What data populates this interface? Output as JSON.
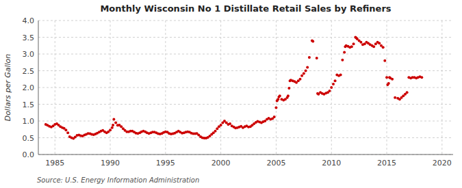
{
  "chart_data": {
    "type": "scatter",
    "title": "Monthly Wisconsin No 1 Distillate Retail Sales by Refiners",
    "ylabel": "Dollars per Gallon",
    "annotations": [
      "Source: U.S. Energy Information Administration"
    ],
    "color": "#cc0000",
    "grid": true,
    "xlim": [
      1983.5,
      2021
    ],
    "ylim": [
      0.0,
      4.0
    ],
    "xticks": [
      1985,
      1990,
      1995,
      2000,
      2005,
      2010,
      2015,
      2020
    ],
    "yticks": [
      {
        "value": 0.0,
        "label": "0.0"
      },
      0.5,
      {
        "value": 1.0,
        "label": "1.0"
      },
      1.5,
      {
        "value": 2.0,
        "label": "2.0"
      },
      2.5,
      {
        "value": 3.0,
        "label": "3.0"
      },
      3.5,
      {
        "value": 4.0,
        "label": "4.0"
      }
    ],
    "x": [
      1984.17,
      1984.33,
      1984.5,
      1984.67,
      1984.83,
      1985.0,
      1985.17,
      1985.33,
      1985.5,
      1985.67,
      1985.83,
      1986.0,
      1986.17,
      1986.33,
      1986.5,
      1986.67,
      1986.83,
      1987.0,
      1987.17,
      1987.33,
      1987.5,
      1987.67,
      1987.83,
      1988.0,
      1988.17,
      1988.33,
      1988.5,
      1988.67,
      1988.83,
      1989.0,
      1989.17,
      1989.33,
      1989.5,
      1989.67,
      1989.83,
      1990.0,
      1990.17,
      1990.25,
      1990.33,
      1990.5,
      1990.67,
      1990.83,
      1991.0,
      1991.17,
      1991.33,
      1991.5,
      1991.67,
      1991.83,
      1992.0,
      1992.17,
      1992.33,
      1992.5,
      1992.67,
      1992.83,
      1993.0,
      1993.17,
      1993.33,
      1993.5,
      1993.67,
      1993.83,
      1994.0,
      1994.17,
      1994.33,
      1994.5,
      1994.67,
      1994.83,
      1995.0,
      1995.17,
      1995.33,
      1995.5,
      1995.67,
      1995.83,
      1996.0,
      1996.17,
      1996.33,
      1996.5,
      1996.67,
      1996.83,
      1997.0,
      1997.17,
      1997.33,
      1997.5,
      1997.67,
      1997.83,
      1998.0,
      1998.17,
      1998.33,
      1998.5,
      1998.67,
      1998.83,
      1999.0,
      1999.17,
      1999.33,
      1999.5,
      1999.67,
      1999.83,
      2000.0,
      2000.17,
      2000.33,
      2000.5,
      2000.67,
      2000.83,
      2001.0,
      2001.17,
      2001.33,
      2001.5,
      2001.67,
      2001.83,
      2002.0,
      2002.17,
      2002.33,
      2002.5,
      2002.67,
      2002.83,
      2003.0,
      2003.17,
      2003.33,
      2003.5,
      2003.67,
      2003.83,
      2004.0,
      2004.17,
      2004.33,
      2004.5,
      2004.67,
      2004.83,
      2005.0,
      2005.08,
      2005.17,
      2005.25,
      2005.33,
      2005.5,
      2005.67,
      2005.83,
      2006.0,
      2006.08,
      2006.17,
      2006.25,
      2006.33,
      2006.5,
      2006.67,
      2006.83,
      2007.0,
      2007.17,
      2007.33,
      2007.5,
      2007.67,
      2007.83,
      2008.0,
      2008.25,
      2008.33,
      2008.67,
      2008.75,
      2008.83,
      2009.0,
      2009.17,
      2009.33,
      2009.5,
      2009.67,
      2009.83,
      2010.0,
      2010.17,
      2010.33,
      2010.5,
      2010.67,
      2010.83,
      2011.0,
      2011.17,
      2011.25,
      2011.33,
      2011.5,
      2011.67,
      2011.83,
      2012.0,
      2012.17,
      2012.25,
      2012.33,
      2012.5,
      2012.67,
      2012.83,
      2013.0,
      2013.17,
      2013.33,
      2013.5,
      2013.67,
      2013.83,
      2014.0,
      2014.17,
      2014.33,
      2014.5,
      2014.67,
      2014.83,
      2015.0,
      2015.08,
      2015.17,
      2015.25,
      2015.33,
      2015.5,
      2015.75,
      2016.0,
      2016.17,
      2016.33,
      2016.5,
      2016.67,
      2016.83,
      2017.0,
      2017.17,
      2017.33,
      2017.5,
      2017.67,
      2017.83,
      2018.0,
      2018.17
    ],
    "values": [
      0.9,
      0.87,
      0.84,
      0.82,
      0.85,
      0.9,
      0.92,
      0.88,
      0.83,
      0.8,
      0.78,
      0.73,
      0.65,
      0.53,
      0.5,
      0.48,
      0.52,
      0.57,
      0.58,
      0.56,
      0.55,
      0.58,
      0.6,
      0.63,
      0.62,
      0.6,
      0.59,
      0.61,
      0.64,
      0.67,
      0.7,
      0.72,
      0.68,
      0.65,
      0.68,
      0.73,
      0.8,
      0.88,
      1.05,
      0.95,
      0.87,
      0.88,
      0.83,
      0.77,
      0.72,
      0.68,
      0.68,
      0.7,
      0.7,
      0.67,
      0.64,
      0.63,
      0.65,
      0.68,
      0.7,
      0.68,
      0.65,
      0.63,
      0.65,
      0.67,
      0.67,
      0.65,
      0.62,
      0.61,
      0.63,
      0.66,
      0.68,
      0.67,
      0.63,
      0.61,
      0.62,
      0.64,
      0.67,
      0.7,
      0.67,
      0.64,
      0.65,
      0.67,
      0.68,
      0.67,
      0.64,
      0.62,
      0.62,
      0.63,
      0.58,
      0.53,
      0.5,
      0.49,
      0.49,
      0.51,
      0.55,
      0.6,
      0.65,
      0.7,
      0.77,
      0.83,
      0.88,
      0.95,
      1.0,
      0.95,
      0.9,
      0.92,
      0.85,
      0.82,
      0.79,
      0.8,
      0.82,
      0.84,
      0.8,
      0.83,
      0.85,
      0.82,
      0.83,
      0.87,
      0.92,
      0.96,
      0.99,
      0.97,
      0.95,
      0.98,
      1.0,
      1.05,
      1.08,
      1.05,
      1.07,
      1.12,
      1.4,
      1.6,
      1.65,
      1.72,
      1.75,
      1.65,
      1.62,
      1.65,
      1.7,
      1.75,
      1.98,
      2.2,
      2.22,
      2.2,
      2.18,
      2.15,
      2.2,
      2.25,
      2.35,
      2.42,
      2.5,
      2.6,
      2.9,
      3.4,
      3.38,
      2.88,
      1.82,
      1.8,
      1.85,
      1.82,
      1.8,
      1.83,
      1.85,
      1.9,
      2.0,
      2.1,
      2.2,
      2.38,
      2.35,
      2.38,
      2.82,
      3.05,
      3.22,
      3.25,
      3.23,
      3.2,
      3.22,
      3.3,
      3.5,
      3.48,
      3.45,
      3.4,
      3.35,
      3.28,
      3.3,
      3.35,
      3.32,
      3.28,
      3.25,
      3.22,
      3.3,
      3.35,
      3.32,
      3.25,
      3.2,
      2.8,
      2.3,
      2.08,
      2.12,
      2.3,
      2.28,
      2.25,
      1.7,
      1.68,
      1.65,
      1.7,
      1.75,
      1.8,
      1.85,
      2.3,
      2.28,
      2.3,
      2.3,
      2.28,
      2.3,
      2.32,
      2.3
    ]
  }
}
